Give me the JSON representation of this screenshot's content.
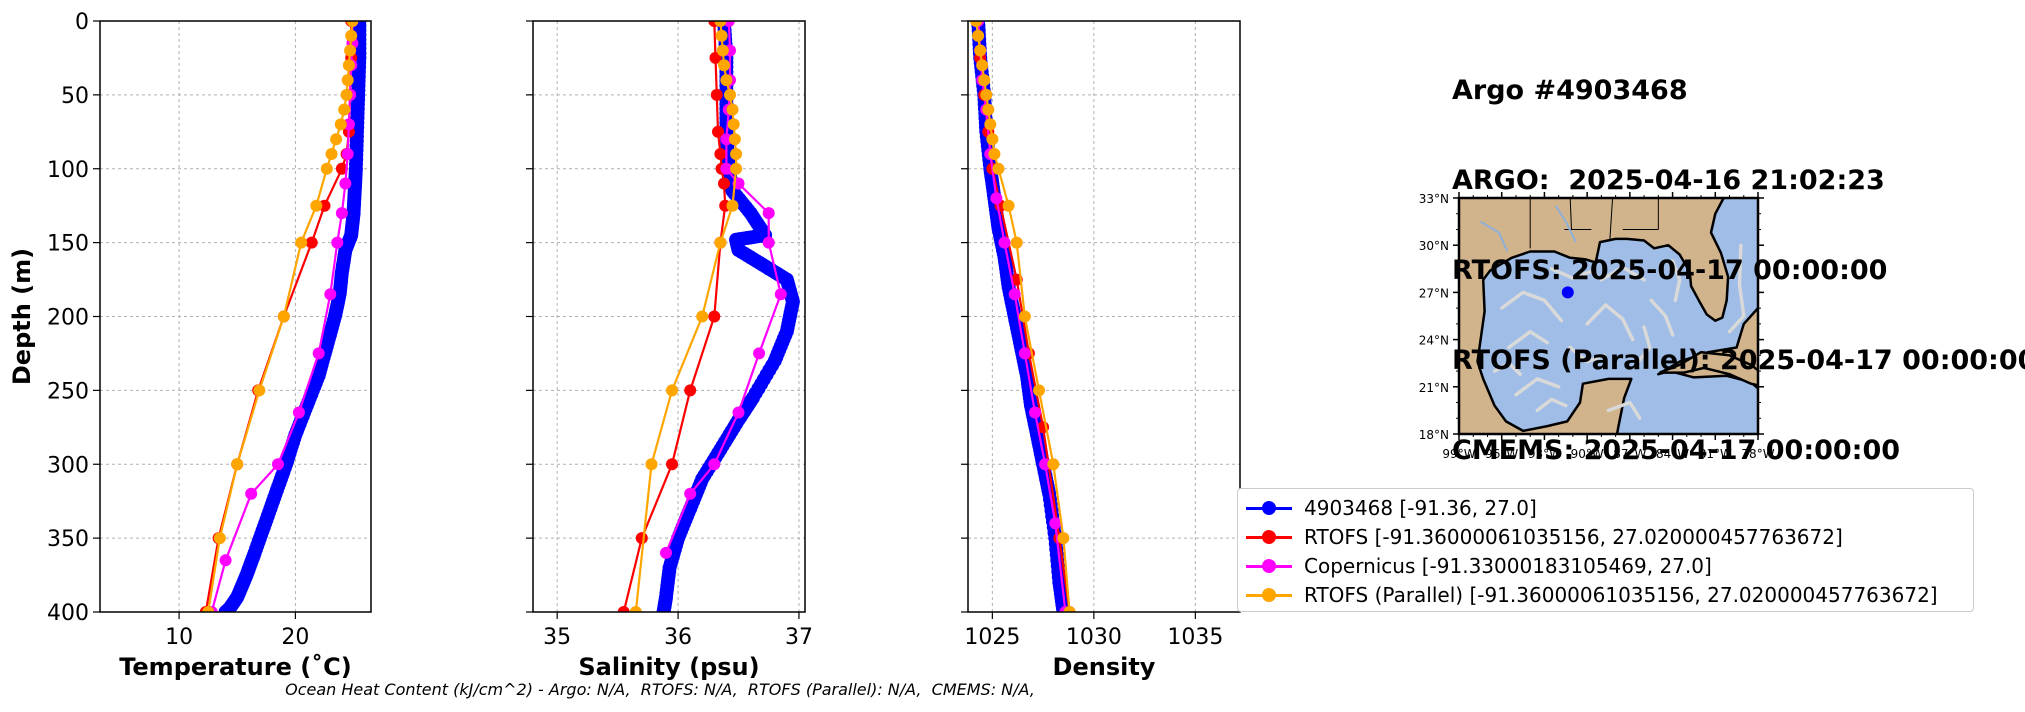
{
  "info": {
    "title": "Argo #4903468",
    "argo": "ARGO:  2025-04-16 21:02:23",
    "rtofs": "RTOFS: 2025-04-17 00:00:00",
    "rtofs_parallel": "RTOFS (Parallel): 2025-04-17 00:00:00",
    "cmems": "CMEMS: 2025-04-17 00:00:00"
  },
  "footer": "Ocean Heat Content (kJ/cm^2) - Argo: N/A,  RTOFS: N/A,  RTOFS (Parallel): N/A,  CMEMS: N/A,",
  "legend": [
    {
      "label": "4903468 [-91.36, 27.0]",
      "color": "#0000ff"
    },
    {
      "label": "RTOFS [-91.36000061035156, 27.020000457763672]",
      "color": "#ff0000"
    },
    {
      "label": "Copernicus [-91.33000183105469, 27.0]",
      "color": "#ff00ff"
    },
    {
      "label": "RTOFS (Parallel) [-91.36000061035156, 27.020000457763672]",
      "color": "#ffa500"
    }
  ],
  "colors": {
    "argo": "#0000ff",
    "rtofs": "#ff0000",
    "copernicus": "#ff00ff",
    "rtofs_parallel": "#ffa500",
    "land": "#d2b48c",
    "ocean": "#9fbde6",
    "current": "#d9d9d9",
    "marker": "#0000ff"
  },
  "chart_data": [
    {
      "type": "line",
      "ylabel": "Depth (m)",
      "xlabel": "Temperature (˚C)",
      "xlim": [
        3.2,
        26.5
      ],
      "ylim": [
        400,
        0
      ],
      "xticks": [
        10,
        20
      ],
      "xtick_labels": [
        "10",
        "20"
      ],
      "yticks": [
        0,
        50,
        100,
        150,
        200,
        250,
        300,
        350,
        400
      ],
      "ytick_labels": [
        "0",
        "50",
        "100",
        "150",
        "200",
        "250",
        "300",
        "350",
        "400"
      ],
      "grid": true,
      "series": [
        {
          "name": "4903468 [-91.36, 27.0]",
          "key": "argo",
          "markers": "dense",
          "x": [
            25.5,
            25.5,
            25.4,
            25.3,
            25.2,
            25.1,
            25.0,
            24.8,
            24.3,
            24.0,
            23.8,
            23.4,
            22.7,
            22.0,
            21.0,
            20.0,
            19.2,
            18.3,
            17.4,
            16.5,
            15.8,
            15.0,
            14.3,
            14.0
          ],
          "y": [
            0,
            25,
            50,
            75,
            100,
            115,
            130,
            145,
            155,
            170,
            185,
            200,
            220,
            240,
            260,
            280,
            300,
            320,
            340,
            360,
            375,
            390,
            398,
            400
          ]
        },
        {
          "name": "RTOFS [-91.36000061035156, 27.020000457763672]",
          "key": "rtofs",
          "x": [
            24.8,
            24.8,
            24.7,
            24.6,
            24.4,
            24.0,
            22.5,
            21.4,
            19.0,
            16.8,
            15.0,
            13.4,
            12.3
          ],
          "y": [
            0,
            25,
            50,
            75,
            90,
            100,
            125,
            150,
            200,
            250,
            300,
            350,
            400
          ]
        },
        {
          "name": "Copernicus [-91.33000183105469, 27.0]",
          "key": "copernicus",
          "x": [
            24.9,
            24.9,
            24.8,
            24.7,
            24.6,
            24.5,
            24.3,
            24.0,
            23.6,
            23.0,
            22.0,
            20.3,
            18.5,
            16.2,
            14.0,
            12.8
          ],
          "y": [
            0,
            15,
            30,
            50,
            70,
            90,
            110,
            130,
            150,
            185,
            225,
            265,
            300,
            320,
            365,
            400
          ]
        },
        {
          "name": "RTOFS (Parallel) [-91.36000061035156, 27.020000457763672]",
          "key": "rtofs_parallel",
          "x": [
            24.9,
            24.8,
            24.7,
            24.6,
            24.5,
            24.4,
            24.2,
            23.9,
            23.5,
            23.1,
            22.7,
            21.8,
            20.5,
            19.0,
            16.9,
            15.0,
            13.5,
            12.5
          ],
          "y": [
            0,
            10,
            20,
            30,
            40,
            50,
            60,
            70,
            80,
            90,
            100,
            125,
            150,
            200,
            250,
            300,
            350,
            400
          ]
        }
      ]
    },
    {
      "type": "line",
      "xlabel": "Salinity (psu)",
      "xlim": [
        34.8,
        37.05
      ],
      "ylim": [
        400,
        0
      ],
      "xticks": [
        35,
        36,
        37
      ],
      "xtick_labels": [
        "35",
        "36",
        "37"
      ],
      "grid": true,
      "series": [
        {
          "name": "4903468 [-91.36, 27.0]",
          "key": "argo",
          "markers": "dense",
          "x": [
            36.38,
            36.4,
            36.4,
            36.4,
            36.42,
            36.45,
            36.6,
            36.72,
            36.48,
            36.5,
            36.7,
            36.9,
            36.95,
            36.9,
            36.8,
            36.62,
            36.5,
            36.35,
            36.2,
            36.1,
            36.0,
            35.93,
            35.9,
            35.88
          ],
          "y": [
            0,
            25,
            50,
            75,
            100,
            115,
            130,
            145,
            148,
            155,
            165,
            175,
            190,
            210,
            230,
            255,
            270,
            290,
            310,
            330,
            350,
            370,
            390,
            400
          ]
        },
        {
          "name": "RTOFS [-91.36000061035156, 27.020000457763672]",
          "key": "rtofs",
          "x": [
            36.3,
            36.31,
            36.32,
            36.33,
            36.35,
            36.36,
            36.38,
            36.39,
            36.35,
            36.3,
            36.1,
            35.95,
            35.7,
            35.55
          ],
          "y": [
            0,
            25,
            50,
            75,
            90,
            100,
            110,
            125,
            150,
            200,
            250,
            300,
            350,
            400
          ]
        },
        {
          "name": "Copernicus [-91.33000183105469, 27.0]",
          "key": "copernicus",
          "x": [
            36.42,
            36.43,
            36.43,
            36.42,
            36.4,
            36.4,
            36.5,
            36.75,
            36.75,
            36.85,
            36.67,
            36.5,
            36.3,
            36.1,
            35.9
          ],
          "y": [
            0,
            20,
            40,
            60,
            80,
            100,
            110,
            130,
            150,
            185,
            225,
            265,
            300,
            320,
            360
          ]
        },
        {
          "name": "RTOFS (Parallel) [-91.36000061035156, 27.020000457763672]",
          "key": "rtofs_parallel",
          "x": [
            36.35,
            36.36,
            36.37,
            36.38,
            36.4,
            36.43,
            36.45,
            36.46,
            36.47,
            36.48,
            36.48,
            36.45,
            36.35,
            36.2,
            35.95,
            35.78,
            35.65
          ],
          "y": [
            0,
            10,
            20,
            30,
            40,
            50,
            60,
            70,
            80,
            90,
            100,
            125,
            150,
            200,
            250,
            300,
            400
          ]
        }
      ]
    },
    {
      "type": "line",
      "xlabel": "Density",
      "xlim": [
        1023.8,
        1037.2
      ],
      "ylim": [
        400,
        0
      ],
      "xticks": [
        1025,
        1030,
        1035
      ],
      "xtick_labels": [
        "1025",
        "1030",
        "1035"
      ],
      "grid": true,
      "series": [
        {
          "name": "4903468 [-91.36, 27.0]",
          "key": "argo",
          "markers": "dense",
          "x": [
            1024.3,
            1024.4,
            1024.6,
            1024.7,
            1024.9,
            1025.1,
            1025.3,
            1025.6,
            1025.8,
            1026.1,
            1026.4,
            1026.7,
            1026.9,
            1027.2,
            1027.5,
            1027.8,
            1028.1,
            1028.3,
            1028.5
          ],
          "y": [
            0,
            25,
            50,
            75,
            100,
            120,
            140,
            160,
            180,
            200,
            220,
            240,
            260,
            280,
            300,
            320,
            350,
            380,
            400
          ]
        },
        {
          "name": "RTOFS [-91.36000061035156, 27.020000457763672]",
          "key": "rtofs",
          "x": [
            1024.3,
            1024.4,
            1024.6,
            1024.8,
            1025.0,
            1025.4,
            1026.2,
            1026.8,
            1027.5,
            1028.3,
            1028.8
          ],
          "y": [
            0,
            25,
            50,
            75,
            100,
            125,
            175,
            225,
            275,
            350,
            400
          ]
        },
        {
          "name": "Copernicus [-91.33000183105469, 27.0]",
          "key": "copernicus",
          "x": [
            1024.3,
            1024.4,
            1024.5,
            1024.7,
            1024.9,
            1025.2,
            1025.6,
            1026.1,
            1026.6,
            1027.1,
            1027.6,
            1028.1,
            1028.6
          ],
          "y": [
            0,
            20,
            40,
            60,
            90,
            120,
            150,
            185,
            225,
            265,
            300,
            340,
            400
          ]
        },
        {
          "name": "RTOFS (Parallel) [-91.36000061035156, 27.020000457763672]",
          "key": "rtofs_parallel",
          "x": [
            1024.2,
            1024.3,
            1024.4,
            1024.5,
            1024.6,
            1024.7,
            1024.8,
            1024.9,
            1025.0,
            1025.1,
            1025.3,
            1025.8,
            1026.2,
            1026.6,
            1027.3,
            1028.0,
            1028.5,
            1028.8
          ],
          "y": [
            0,
            10,
            20,
            30,
            40,
            50,
            60,
            70,
            80,
            90,
            100,
            125,
            150,
            200,
            250,
            300,
            350,
            400
          ]
        }
      ]
    }
  ],
  "map": {
    "lon_range": [
      -99,
      -78
    ],
    "lat_range": [
      18,
      33
    ],
    "lon_labels": [
      "99°W",
      "96°W",
      "93°W",
      "90°W",
      "87°W",
      "84°W",
      "81°W",
      "78°W"
    ],
    "lat_labels": [
      "33°N",
      "30°N",
      "27°N",
      "24°N",
      "21°N",
      "18°N"
    ],
    "float_position": {
      "lon": -91.36,
      "lat": 27.0
    }
  }
}
